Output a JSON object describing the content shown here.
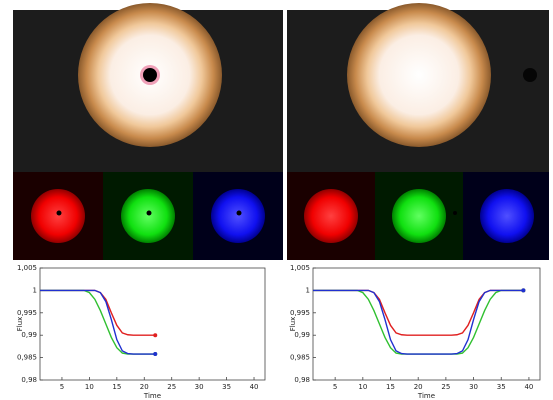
{
  "chart_data": [
    {
      "type": "line",
      "xlabel": "Time",
      "ylabel": "Flux",
      "x": [
        1,
        2,
        3,
        4,
        5,
        6,
        7,
        8,
        9,
        10,
        11,
        12,
        13,
        14,
        15,
        16,
        17,
        18,
        19,
        20,
        21,
        22
      ],
      "xlim": [
        1,
        42
      ],
      "xticks": [
        5,
        10,
        15,
        20,
        25,
        30,
        35,
        40
      ],
      "ylim": [
        0.98,
        1.005
      ],
      "yticks": [
        {
          "value": 0.98,
          "label": "0,98"
        },
        {
          "value": 0.985,
          "label": "0,985"
        },
        {
          "value": 0.99,
          "label": "0,99"
        },
        {
          "value": 0.995,
          "label": "0,995"
        },
        1,
        {
          "value": 1.005,
          "label": "1,005"
        }
      ],
      "series": [
        {
          "color": "#e02020",
          "values": [
            1,
            1,
            1,
            1,
            1,
            1,
            1,
            1,
            1,
            1,
            1,
            0.9995,
            0.998,
            0.995,
            0.9922,
            0.9905,
            0.9901,
            0.99,
            0.99,
            0.99,
            0.99,
            0.99
          ]
        },
        {
          "color": "#30c030",
          "values": [
            1,
            1,
            1,
            1,
            1,
            1,
            1,
            1,
            1,
            0.9995,
            0.998,
            0.9955,
            0.9925,
            0.9895,
            0.9872,
            0.986,
            0.9858,
            0.9858,
            0.9858,
            0.9858,
            0.9858,
            0.9858
          ]
        },
        {
          "color": "#2030d0",
          "values": [
            1,
            1,
            1,
            1,
            1,
            1,
            1,
            1,
            1,
            1,
            1,
            0.9995,
            0.9975,
            0.9935,
            0.989,
            0.9865,
            0.9859,
            0.9858,
            0.9858,
            0.9858,
            0.9858,
            0.9858
          ]
        }
      ]
    },
    {
      "type": "line",
      "xlabel": "Time",
      "ylabel": "Flux",
      "x": [
        1,
        2,
        3,
        4,
        5,
        6,
        7,
        8,
        9,
        10,
        11,
        12,
        13,
        14,
        15,
        16,
        17,
        18,
        19,
        20,
        21,
        22,
        23,
        24,
        25,
        26,
        27,
        28,
        29,
        30,
        31,
        32,
        33,
        34,
        35,
        36,
        37,
        38,
        39
      ],
      "xlim": [
        1,
        42
      ],
      "xticks": [
        5,
        10,
        15,
        20,
        25,
        30,
        35,
        40
      ],
      "ylim": [
        0.98,
        1.005
      ],
      "yticks": [
        {
          "value": 0.98,
          "label": "0,98"
        },
        {
          "value": 0.985,
          "label": "0,985"
        },
        {
          "value": 0.99,
          "label": "0,99"
        },
        {
          "value": 0.995,
          "label": "0,995"
        },
        1,
        {
          "value": 1.005,
          "label": "1,005"
        }
      ],
      "series": [
        {
          "color": "#e02020",
          "values": [
            1,
            1,
            1,
            1,
            1,
            1,
            1,
            1,
            1,
            1,
            1,
            0.9995,
            0.998,
            0.995,
            0.9922,
            0.9905,
            0.9901,
            0.99,
            0.99,
            0.99,
            0.99,
            0.99,
            0.99,
            0.99,
            0.99,
            0.99,
            0.9901,
            0.9905,
            0.9922,
            0.995,
            0.998,
            0.9995,
            1,
            1,
            1,
            1,
            1,
            1,
            1
          ]
        },
        {
          "color": "#30c030",
          "values": [
            1,
            1,
            1,
            1,
            1,
            1,
            1,
            1,
            1,
            0.9995,
            0.998,
            0.9955,
            0.9925,
            0.9895,
            0.9872,
            0.986,
            0.9858,
            0.9858,
            0.9858,
            0.9858,
            0.9858,
            0.9858,
            0.9858,
            0.9858,
            0.9858,
            0.9858,
            0.9858,
            0.986,
            0.9872,
            0.9895,
            0.9925,
            0.9955,
            0.998,
            0.9995,
            1,
            1,
            1,
            1,
            1
          ]
        },
        {
          "color": "#2030d0",
          "values": [
            1,
            1,
            1,
            1,
            1,
            1,
            1,
            1,
            1,
            1,
            1,
            0.9995,
            0.9975,
            0.9935,
            0.989,
            0.9865,
            0.9859,
            0.9858,
            0.9858,
            0.9858,
            0.9858,
            0.9858,
            0.9858,
            0.9858,
            0.9858,
            0.9858,
            0.9859,
            0.9865,
            0.989,
            0.9935,
            0.9975,
            0.9995,
            1,
            1,
            1,
            1,
            1,
            1,
            1
          ]
        }
      ]
    }
  ]
}
